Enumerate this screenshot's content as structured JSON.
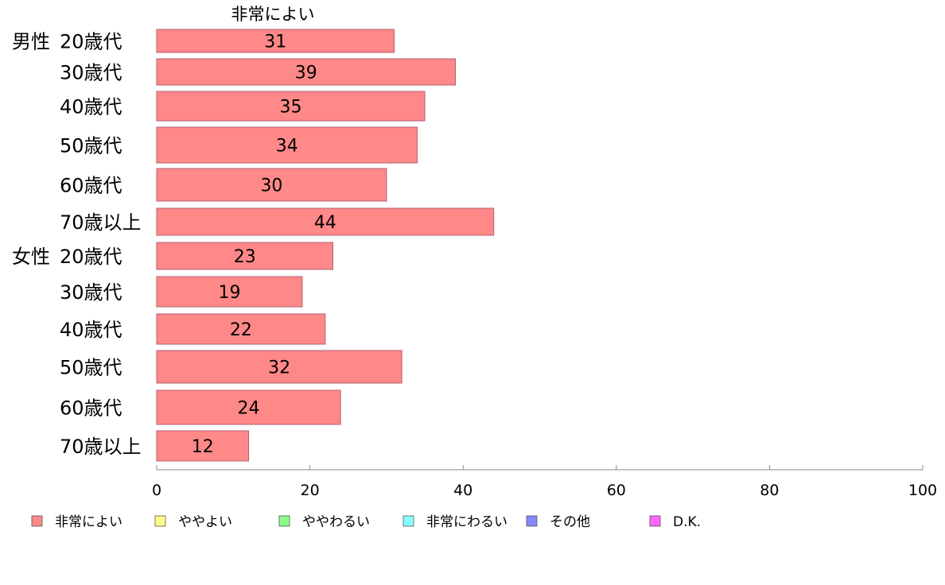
{
  "chart_data": {
    "type": "bar",
    "orientation": "horizontal",
    "series_title": "非常によい",
    "groups": [
      {
        "name": "男性",
        "categories": [
          "20歳代",
          "30歳代",
          "40歳代",
          "50歳代",
          "60歳代",
          "70歳以上"
        ],
        "values": [
          31,
          39,
          35,
          34,
          30,
          44
        ]
      },
      {
        "name": "女性",
        "categories": [
          "20歳代",
          "30歳代",
          "40歳代",
          "50歳代",
          "60歳代",
          "70歳以上"
        ],
        "values": [
          23,
          19,
          22,
          32,
          24,
          12
        ]
      }
    ],
    "series": [
      {
        "name": "非常によい",
        "color": "#ff8888"
      }
    ],
    "xlim": [
      0,
      100
    ],
    "xticks": [
      0,
      20,
      40,
      60,
      80,
      100
    ],
    "grid": false,
    "legend_placement": "bottom",
    "legend": [
      {
        "label": "非常によい",
        "color": "#ff8888"
      },
      {
        "label": "ややよい",
        "color": "#ffff88"
      },
      {
        "label": "ややわるい",
        "color": "#88ff88"
      },
      {
        "label": "非常にわるい",
        "color": "#88ffff"
      },
      {
        "label": "その他",
        "color": "#8888ff"
      },
      {
        "label": "D.K.",
        "color": "#ff66ff"
      }
    ],
    "colors": {
      "bar_stroke": "#b06070",
      "axis": "#888888"
    }
  }
}
